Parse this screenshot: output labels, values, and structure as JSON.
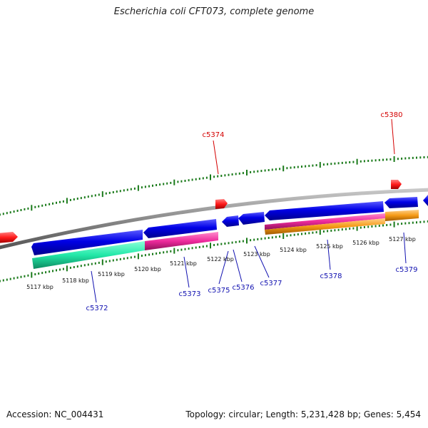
{
  "title": "Escherichia coli CFT073, complete genome",
  "footer": {
    "accession": "Accession: NC_004431",
    "genome_info": "Topology: circular; Length: 5,231,428 bp; Genes: 5,454"
  },
  "colors": {
    "backbone": "#8a8a8a",
    "ticks": "#1a7a1a",
    "forward_gene": "#0000e6",
    "gene_teal": "#22e8a8",
    "gene_magenta": "#ee2a9c",
    "gene_orange": "#f59a16",
    "marker_red": "#ff1a1a",
    "label_red": "#d40000",
    "label_blue": "#1010b0"
  },
  "scale_labels": [
    "5117 kbp",
    "5118 kbp",
    "5119 kbp",
    "5120 kbp",
    "5121 kbp",
    "5122 kbp",
    "5123 kbp",
    "5124 kbp",
    "5125 kbp",
    "5126 kbp",
    "5127 kbp"
  ],
  "gene_labels_top": [
    "c5374",
    "c5380"
  ],
  "gene_labels_bottom": [
    "c5372",
    "c5373",
    "c5375",
    "c5376",
    "c5377",
    "c5378",
    "c5379"
  ]
}
